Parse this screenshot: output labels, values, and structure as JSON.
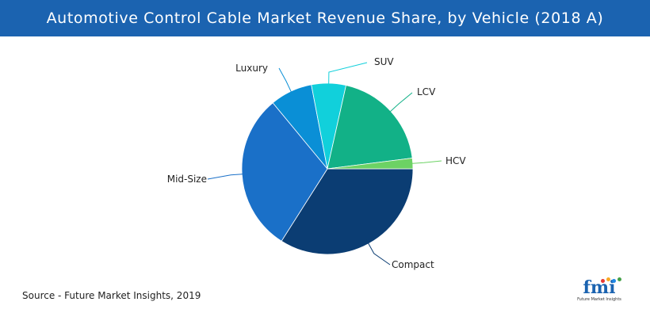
{
  "header": {
    "title": "Automotive Control Cable Market Revenue Share, by Vehicle (2018 A)"
  },
  "chart_data": {
    "type": "pie",
    "title": "Automotive Control Cable Market Revenue Share, by Vehicle (2018 A)",
    "start_angle_deg": 0,
    "direction": "clockwise",
    "slices": [
      {
        "label": "Compact",
        "value": 34.0,
        "color": "#0b3d73"
      },
      {
        "label": "Mid-Size",
        "value": 30.0,
        "color": "#1a70c8"
      },
      {
        "label": "Luxury",
        "value": 8.0,
        "color": "#0a8fd6"
      },
      {
        "label": "SUV",
        "value": 6.5,
        "color": "#11d0db"
      },
      {
        "label": "LCV",
        "value": 19.5,
        "color": "#12b187"
      },
      {
        "label": "HCV",
        "value": 2.0,
        "color": "#6cd264"
      }
    ]
  },
  "footer": {
    "source": "Source - Future Market Insights, 2019"
  },
  "logo": {
    "word": "fmi",
    "tagline": "Future Market Insights",
    "dot_colors": [
      "#e53935",
      "#f9a825",
      "#1e88e5",
      "#43a047"
    ]
  }
}
